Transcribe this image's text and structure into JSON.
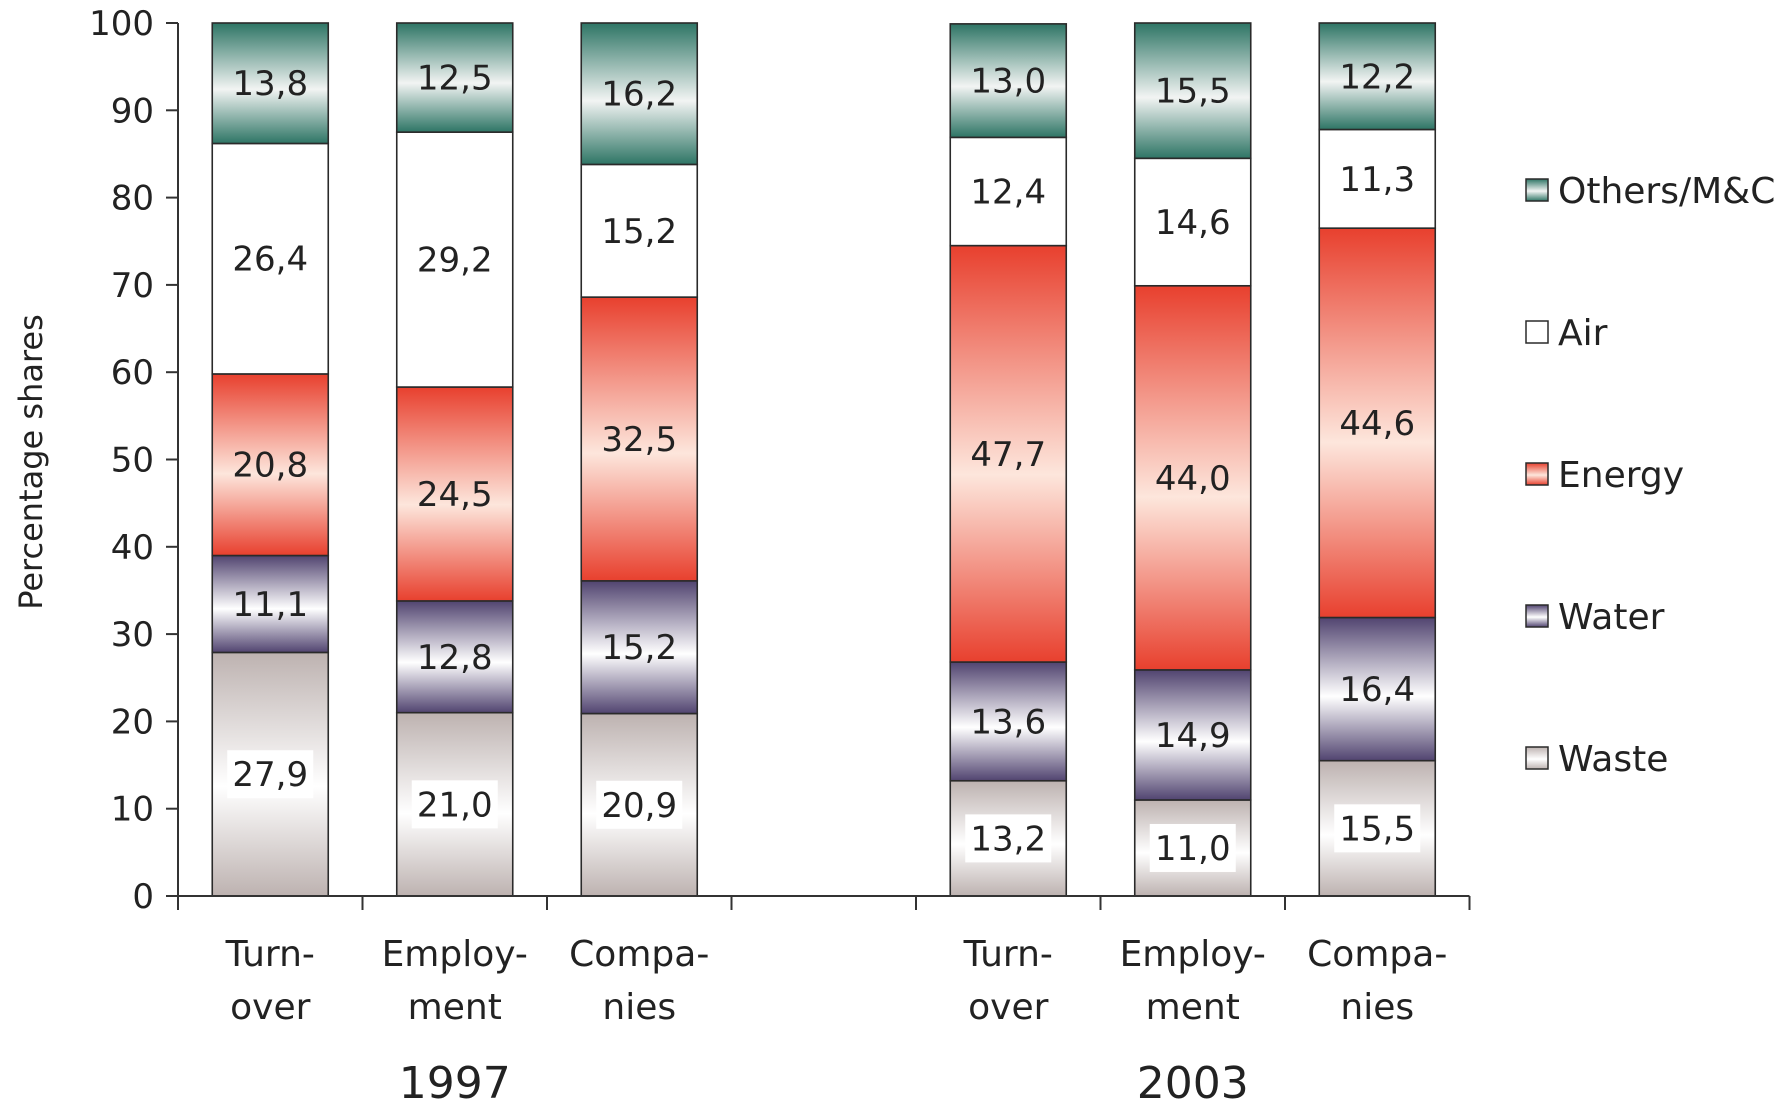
{
  "chart_data": {
    "type": "bar",
    "stacked": true,
    "ylabel": "Percentage shares",
    "ylim": [
      0,
      100
    ],
    "yticks": [
      "0",
      "10",
      "20",
      "30",
      "40",
      "50",
      "60",
      "70",
      "80",
      "90",
      "100"
    ],
    "grid": false,
    "legend_position": "right",
    "groups": [
      {
        "label": "1997",
        "categories": [
          [
            "Turn-",
            "over"
          ],
          [
            "Employ-",
            "ment"
          ],
          [
            "Compa-",
            "nies"
          ]
        ]
      },
      {
        "label": "2003",
        "categories": [
          [
            "Turn-",
            "over"
          ],
          [
            "Employ-",
            "ment"
          ],
          [
            "Compa-",
            "nies"
          ]
        ]
      }
    ],
    "series": [
      {
        "name": "Waste",
        "color": "#bdb2b0",
        "values": [
          27.9,
          21.0,
          20.9,
          13.2,
          11.0,
          15.5
        ],
        "labels": [
          "27,9",
          "21,0",
          "20,9",
          "13,2",
          "11,0",
          "15,5"
        ]
      },
      {
        "name": "Water",
        "color": "#514470",
        "values": [
          11.1,
          12.8,
          15.2,
          13.6,
          14.9,
          16.4
        ],
        "labels": [
          "11,1",
          "12,8",
          "15,2",
          "13,6",
          "14,9",
          "16,4"
        ]
      },
      {
        "name": "Energy",
        "color": "#e8402e",
        "values": [
          20.8,
          24.5,
          32.5,
          47.7,
          44.0,
          44.6
        ],
        "labels": [
          "20,8",
          "24,5",
          "32,5",
          "47,7",
          "44,0",
          "44,6"
        ]
      },
      {
        "name": "Air",
        "color": "#ffffff",
        "values": [
          26.4,
          29.2,
          15.2,
          12.4,
          14.6,
          11.3
        ],
        "labels": [
          "26,4",
          "29,2",
          "15,2",
          "12,4",
          "14,6",
          "11,3"
        ]
      },
      {
        "name": "Others/M&C",
        "color": "#2e7565",
        "values": [
          13.8,
          12.5,
          16.2,
          13.0,
          15.5,
          12.2
        ],
        "labels": [
          "13,8",
          "12,5",
          "16,2",
          "13,0",
          "15,5",
          "12,2"
        ]
      }
    ],
    "legend_order": [
      "Others/M&C",
      "Air",
      "Energy",
      "Water",
      "Waste"
    ]
  }
}
